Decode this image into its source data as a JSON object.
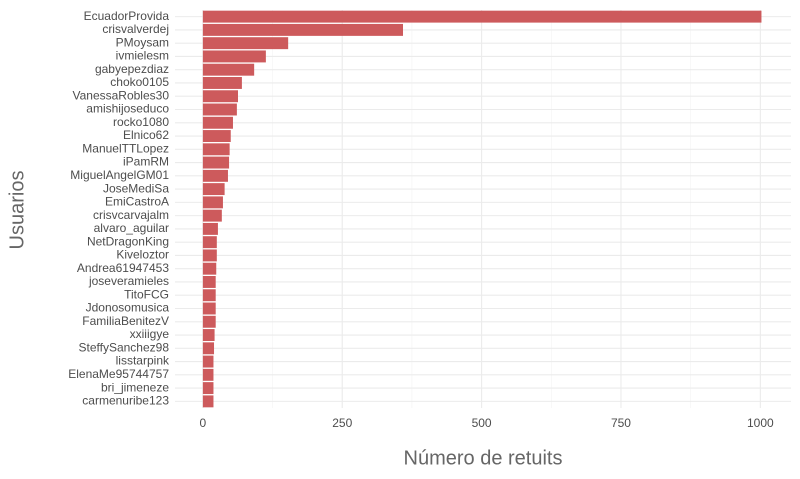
{
  "chart_data": {
    "type": "barh",
    "x_label": "Número de retuits",
    "y_label": "Usuarios",
    "categories": [
      "EcuadorProvida",
      "crisvalverdej",
      "PMoysam",
      "ivmielesm",
      "gabyepezdiaz",
      "choko0105",
      "VanessaRobles30",
      "amishijoseduco",
      "rocko1080",
      "Elnico62",
      "ManuelTTLopez",
      "iPamRM",
      "MiguelAngelGM01",
      "JoseMediSa",
      "EmiCastroA",
      "crisvcarvajalm",
      "alvaro_aguilar",
      "NetDragonKing",
      "Kiveloztor",
      "Andrea61947453",
      "joseveramieles",
      "TitoFCG",
      "Jdonosomusica",
      "FamiliaBenitezV",
      "xxiiigye",
      "SteffySanchez98",
      "lisstarpink",
      "ElenaMe95744757",
      "bri_jimeneze",
      "carmenuribe123"
    ],
    "values": [
      1002,
      359,
      153,
      113,
      92,
      70,
      63,
      61,
      54,
      50,
      48,
      47,
      45,
      39,
      36,
      34,
      27,
      25,
      25,
      24,
      23,
      23,
      23,
      23,
      21,
      20,
      19,
      19,
      19,
      19
    ],
    "color": "#cd5a5c",
    "xlim": [
      -50,
      1055
    ],
    "xticks": [
      0,
      250,
      500,
      750,
      1000
    ],
    "grid": true
  }
}
